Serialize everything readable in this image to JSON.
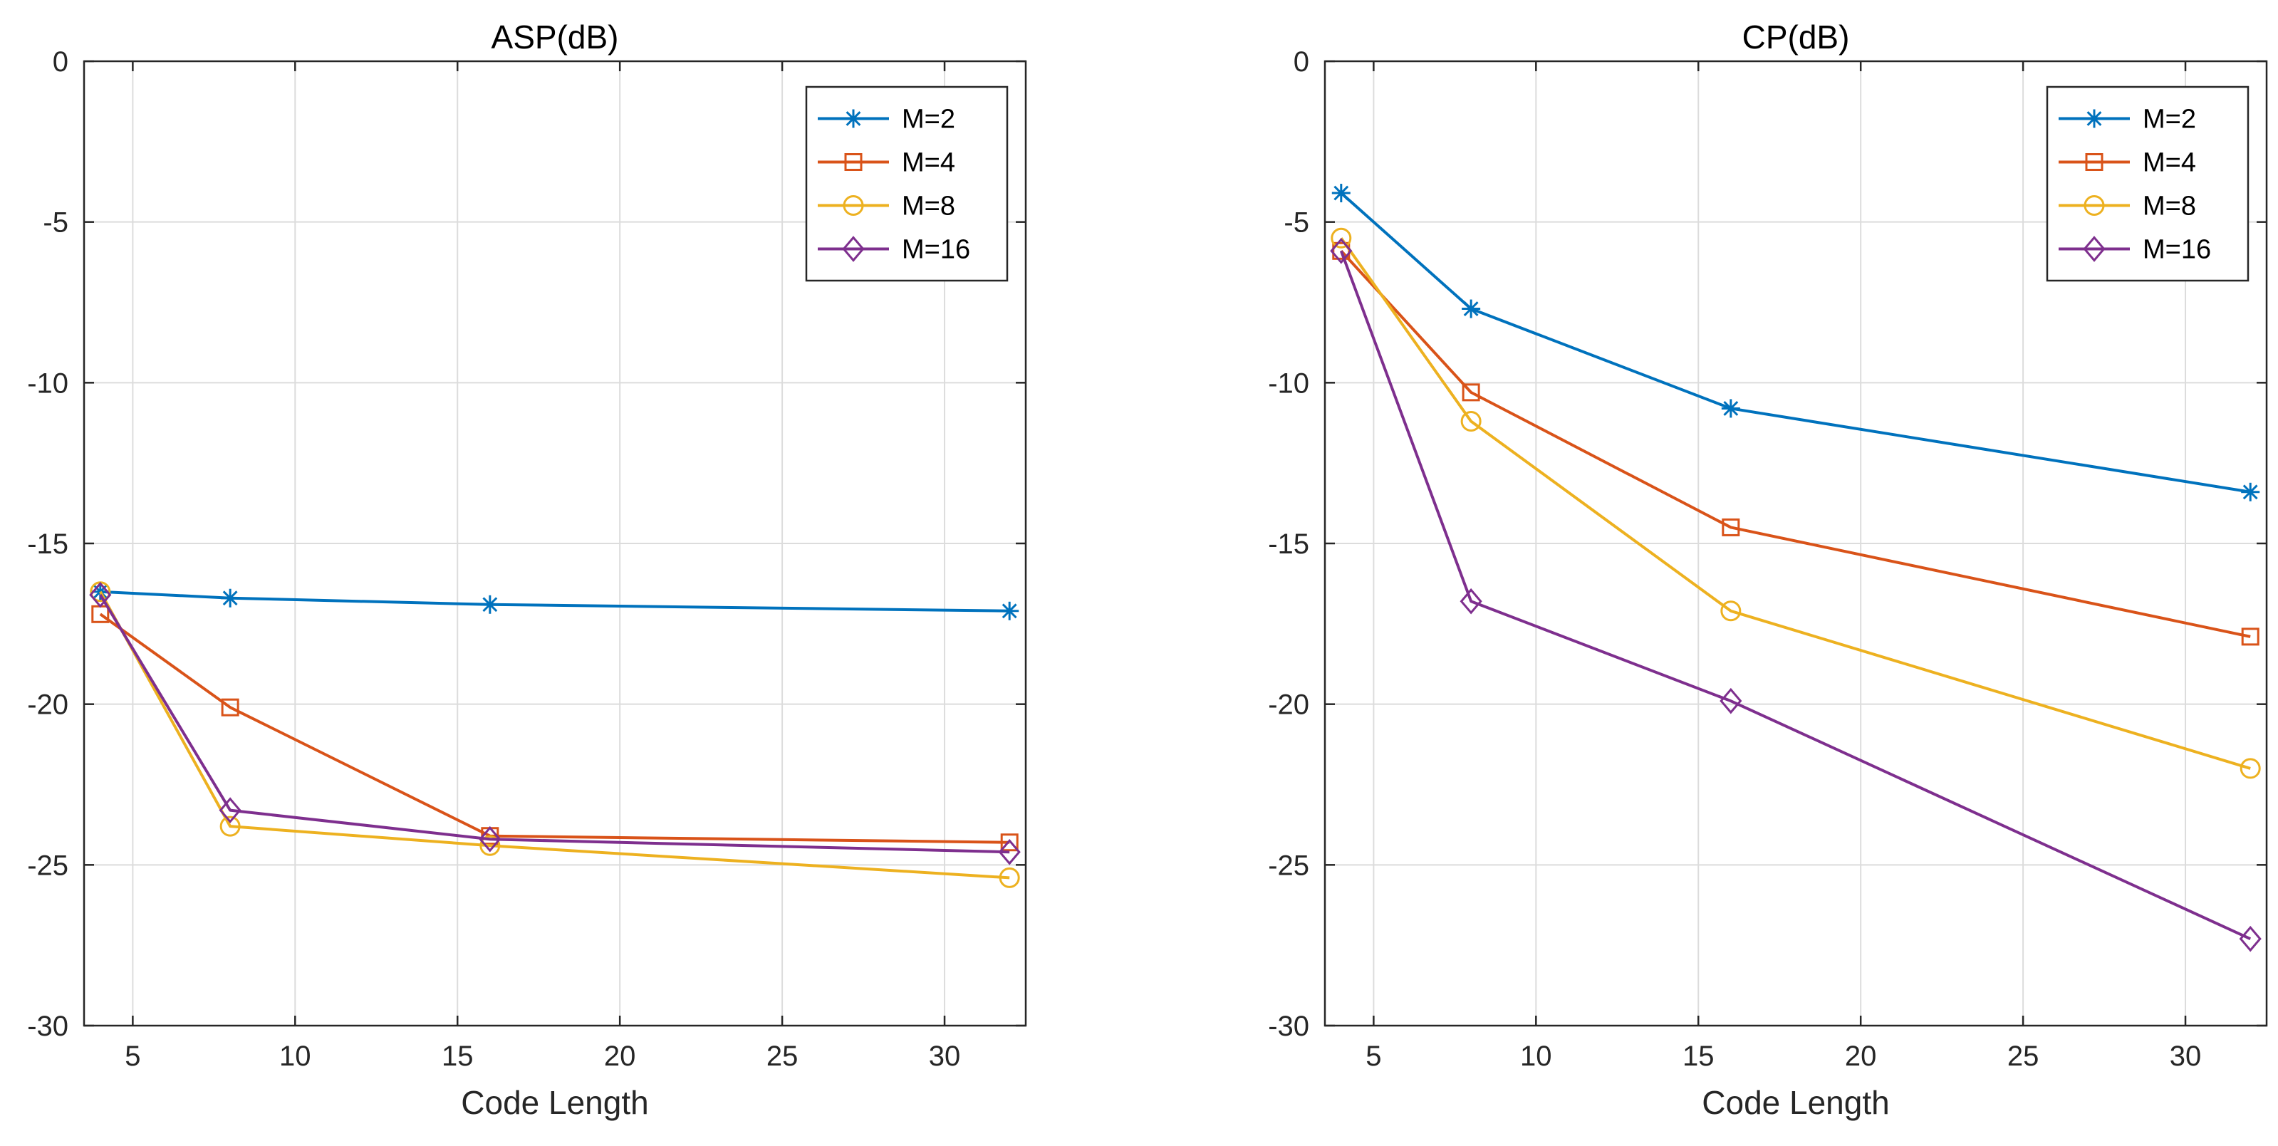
{
  "chart_data": [
    {
      "type": "line",
      "title": "ASP(dB)",
      "xlabel": "Code Length",
      "ylabel": "",
      "xlim": [
        3.5,
        32.5
      ],
      "ylim": [
        -30,
        0
      ],
      "xticks": [
        5,
        10,
        15,
        20,
        25,
        30
      ],
      "yticks": [
        0,
        -5,
        -10,
        -15,
        -20,
        -25,
        -30
      ],
      "grid": true,
      "legend_position": "top-right",
      "x": [
        4,
        8,
        16,
        32
      ],
      "series": [
        {
          "name": "M=2",
          "color": "#0072BD",
          "marker": "asterisk",
          "values": [
            -16.5,
            -16.7,
            -16.9,
            -17.1
          ]
        },
        {
          "name": "M=4",
          "color": "#D95319",
          "marker": "square",
          "values": [
            -17.2,
            -20.1,
            -24.1,
            -24.3
          ]
        },
        {
          "name": "M=8",
          "color": "#EDB120",
          "marker": "circle",
          "values": [
            -16.5,
            -23.8,
            -24.4,
            -25.4
          ]
        },
        {
          "name": "M=16",
          "color": "#7E2F8E",
          "marker": "diamond",
          "values": [
            -16.6,
            -23.3,
            -24.2,
            -24.6
          ]
        }
      ]
    },
    {
      "type": "line",
      "title": "CP(dB)",
      "xlabel": "Code Length",
      "ylabel": "",
      "xlim": [
        3.5,
        32.5
      ],
      "ylim": [
        -30,
        0
      ],
      "xticks": [
        5,
        10,
        15,
        20,
        25,
        30
      ],
      "yticks": [
        0,
        -5,
        -10,
        -15,
        -20,
        -25,
        -30
      ],
      "grid": true,
      "legend_position": "top-right",
      "x": [
        4,
        8,
        16,
        32
      ],
      "series": [
        {
          "name": "M=2",
          "color": "#0072BD",
          "marker": "asterisk",
          "values": [
            -4.1,
            -7.7,
            -10.8,
            -13.4
          ]
        },
        {
          "name": "M=4",
          "color": "#D95319",
          "marker": "square",
          "values": [
            -5.9,
            -10.3,
            -14.5,
            -17.9
          ]
        },
        {
          "name": "M=8",
          "color": "#EDB120",
          "marker": "circle",
          "values": [
            -5.5,
            -11.2,
            -17.1,
            -22.0
          ]
        },
        {
          "name": "M=16",
          "color": "#7E2F8E",
          "marker": "diamond",
          "values": [
            -5.9,
            -16.8,
            -19.9,
            -27.3
          ]
        }
      ]
    }
  ]
}
